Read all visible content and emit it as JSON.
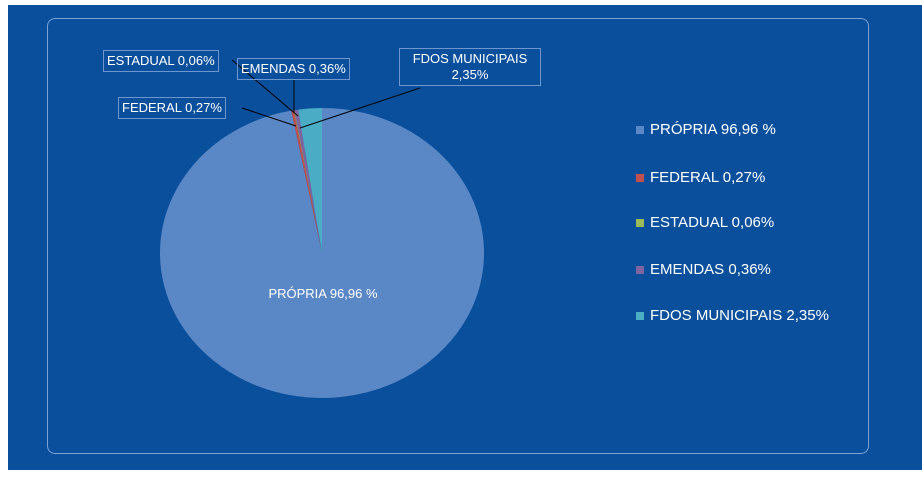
{
  "chart_data": {
    "type": "pie",
    "categories": [
      "PRÓPRIA 96,96 %",
      "FEDERAL 0,27%",
      "ESTADUAL 0,06%",
      "EMENDAS 0,36%",
      "FDOS MUNICIPAIS 2,35%"
    ],
    "values": [
      96.96,
      0.27,
      0.06,
      0.36,
      2.35
    ],
    "value_labels": [
      "PRÓPRIA 96,96 %",
      "FEDERAL 0,27%",
      "ESTADUAL 0,06%",
      "EMENDAS 0,36%",
      "FDOS MUNICIPAIS 2,35%"
    ],
    "colors": [
      "#5a87c5",
      "#c0504d",
      "#9bbb59",
      "#8064a2",
      "#4bacc6"
    ],
    "legend": "right"
  }
}
